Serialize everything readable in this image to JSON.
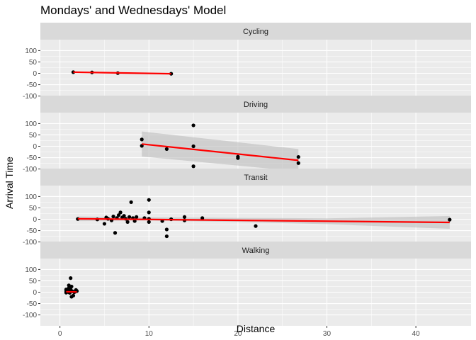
{
  "chart_data": {
    "type": "scatter",
    "title": "Mondays' and Wednesdays' Model",
    "xlabel": "Distance",
    "ylabel": "Arrival Time",
    "xlim": [
      -2.2,
      46.2
    ],
    "x_ticks": [
      0,
      10,
      20,
      30,
      40
    ],
    "y_ticks": [
      -100,
      -50,
      0,
      50,
      100
    ],
    "grid": true,
    "facet_layout": "stacked-vertical",
    "colors": {
      "panel_bg": "#ebebeb",
      "strip_bg": "#d9d9d9",
      "grid_major": "#ffffff",
      "point": "#000000",
      "fit_line": "#ff0000",
      "ribbon": "#bdbdbd"
    },
    "panels": [
      {
        "name": "Cycling",
        "ylim": [
          -148,
          148
        ],
        "points": [
          [
            1.5,
            5
          ],
          [
            3.6,
            4
          ],
          [
            6.5,
            1
          ],
          [
            12.5,
            -2
          ]
        ],
        "fit": {
          "x": [
            1.5,
            12.5
          ],
          "y": [
            5,
            -2
          ]
        },
        "ribbon": null
      },
      {
        "name": "Driving",
        "ylim": [
          -148,
          148
        ],
        "points": [
          [
            9.2,
            30
          ],
          [
            9.2,
            2
          ],
          [
            12,
            -12
          ],
          [
            15,
            92
          ],
          [
            15,
            0
          ],
          [
            15,
            -88
          ],
          [
            15,
            -118
          ],
          [
            20,
            -46
          ],
          [
            20,
            -52
          ],
          [
            26.8,
            -47
          ],
          [
            26.8,
            -74
          ]
        ],
        "fit": {
          "x": [
            9.2,
            26.8
          ],
          "y": [
            10,
            -62
          ]
        },
        "ribbon": {
          "x": [
            9.2,
            26.8
          ],
          "lower": [
            -45,
            -110
          ],
          "upper": [
            65,
            -12
          ]
        }
      },
      {
        "name": "Transit",
        "ylim": [
          -148,
          148
        ],
        "points": [
          [
            2,
            1
          ],
          [
            4.2,
            -1
          ],
          [
            5,
            -20
          ],
          [
            5.2,
            8
          ],
          [
            5.4,
            2
          ],
          [
            5.8,
            -5
          ],
          [
            6,
            12
          ],
          [
            6.2,
            -60
          ],
          [
            6.4,
            5
          ],
          [
            6.6,
            18
          ],
          [
            6.8,
            30
          ],
          [
            7,
            8
          ],
          [
            7.2,
            15
          ],
          [
            7.4,
            2
          ],
          [
            7.6,
            -12
          ],
          [
            7.8,
            10
          ],
          [
            8,
            75
          ],
          [
            8.2,
            5
          ],
          [
            8.4,
            -8
          ],
          [
            8.6,
            10
          ],
          [
            9.5,
            5
          ],
          [
            10,
            85
          ],
          [
            10,
            30
          ],
          [
            10,
            2
          ],
          [
            10,
            -12
          ],
          [
            11.5,
            -8
          ],
          [
            12,
            -45
          ],
          [
            12,
            -75
          ],
          [
            12.5,
            0
          ],
          [
            14,
            -5
          ],
          [
            14,
            10
          ],
          [
            16,
            5
          ],
          [
            22,
            -30
          ],
          [
            43.8,
            -2
          ]
        ],
        "fit": {
          "x": [
            2,
            43.8
          ],
          "y": [
            2,
            -14
          ]
        },
        "ribbon": {
          "x": [
            2,
            10,
            20,
            30,
            43.8
          ],
          "lower": [
            -8,
            -6,
            -12,
            -22,
            -42
          ],
          "upper": [
            12,
            8,
            6,
            4,
            14
          ]
        }
      },
      {
        "name": "Walking",
        "ylim": [
          -148,
          148
        ],
        "points": [
          [
            0.7,
            12
          ],
          [
            0.7,
            5
          ],
          [
            0.7,
            -2
          ],
          [
            0.8,
            2
          ],
          [
            0.9,
            8
          ],
          [
            1,
            30
          ],
          [
            1,
            18
          ],
          [
            1,
            10
          ],
          [
            1,
            5
          ],
          [
            1,
            0
          ],
          [
            1.1,
            -3
          ],
          [
            1.2,
            62
          ],
          [
            1.2,
            12
          ],
          [
            1.3,
            25
          ],
          [
            1.3,
            -20
          ],
          [
            1.4,
            4
          ],
          [
            1.5,
            -15
          ],
          [
            1.6,
            0
          ],
          [
            1.7,
            2
          ],
          [
            1.8,
            10
          ],
          [
            1.9,
            5
          ]
        ],
        "fit": {
          "x": [
            0.7,
            1.9
          ],
          "y": [
            2,
            1
          ]
        },
        "ribbon": null
      }
    ]
  }
}
